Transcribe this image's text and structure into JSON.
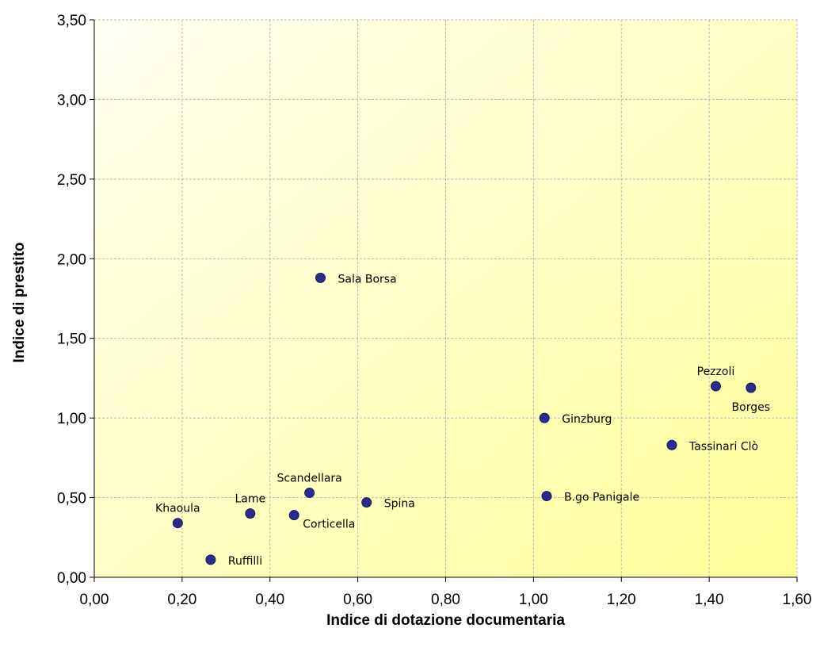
{
  "chart_data": {
    "type": "scatter",
    "xlabel": "Indice di dotazione documentaria",
    "ylabel": "Indice di prestito",
    "xlim": [
      0,
      1.6
    ],
    "ylim": [
      0,
      3.5
    ],
    "x_ticks": [
      "0,00",
      "0,20",
      "0,40",
      "0,60",
      "0,80",
      "1,00",
      "1,20",
      "1,40",
      "1,60"
    ],
    "y_ticks": [
      "0,00",
      "0,50",
      "1,00",
      "1,50",
      "2,00",
      "2,50",
      "3,00",
      "3,50"
    ],
    "grid": true,
    "point_color": "#2b2b8c",
    "background": {
      "from": "#fffff2",
      "to": "#ffff99"
    },
    "points": [
      {
        "label": "Sala Borsa",
        "x": 0.515,
        "y": 1.88,
        "anchor": "right"
      },
      {
        "label": "Pezzoli",
        "x": 1.415,
        "y": 1.2,
        "anchor": "above"
      },
      {
        "label": "Borges",
        "x": 1.495,
        "y": 1.19,
        "anchor": "below"
      },
      {
        "label": "Ginzburg",
        "x": 1.025,
        "y": 1.0,
        "anchor": "right"
      },
      {
        "label": "Tassinari Clò",
        "x": 1.315,
        "y": 0.83,
        "anchor": "right"
      },
      {
        "label": "B.go Panigale",
        "x": 1.03,
        "y": 0.51,
        "anchor": "right"
      },
      {
        "label": "Scandellara",
        "x": 0.49,
        "y": 0.53,
        "anchor": "above"
      },
      {
        "label": "Spina",
        "x": 0.62,
        "y": 0.47,
        "anchor": "right"
      },
      {
        "label": "Lame",
        "x": 0.355,
        "y": 0.4,
        "anchor": "above"
      },
      {
        "label": "Corticella",
        "x": 0.455,
        "y": 0.39,
        "anchor": "below-right"
      },
      {
        "label": "Khaoula",
        "x": 0.19,
        "y": 0.34,
        "anchor": "above"
      },
      {
        "label": "Ruffilli",
        "x": 0.265,
        "y": 0.11,
        "anchor": "right"
      }
    ]
  }
}
